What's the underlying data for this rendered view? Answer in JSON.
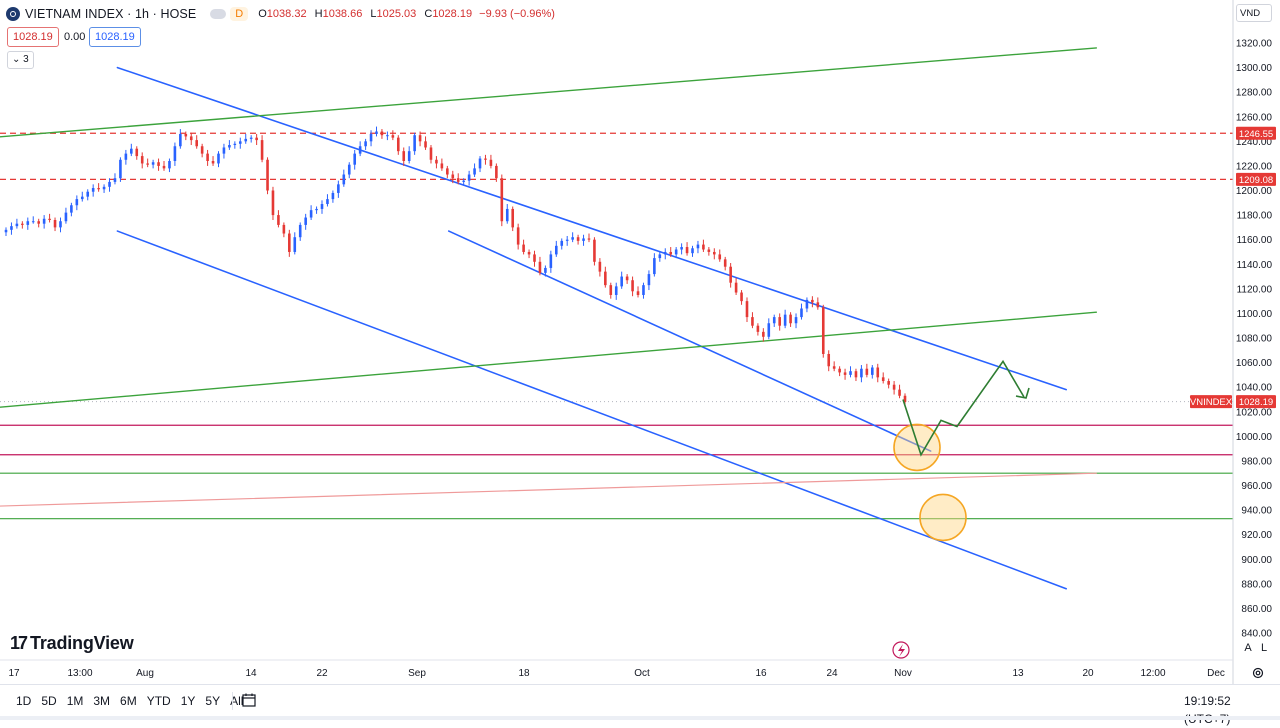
{
  "header": {
    "symbol_title": "VIETNAM INDEX · 1h · HOSE",
    "interval_badge": "D",
    "open_label": "O",
    "open": "1038.32",
    "high_label": "H",
    "high": "1038.66",
    "low_label": "L",
    "low": "1025.03",
    "close_label": "C",
    "close": "1028.19",
    "change": "−9.93 (−0.96%)",
    "bid": "1028.19",
    "spread": "0.00",
    "ask": "1028.19",
    "indicators_toggle": "⌄ 3"
  },
  "currency_select": "VND",
  "colors": {
    "up": "#26a69a",
    "down": "#ef5350",
    "candle_up": "#2962ff",
    "candle_down": "#e53935",
    "blue_line": "#2962ff",
    "green_line": "#3ca33c",
    "red_dash": "#e53935",
    "red_solid": "#c2185b",
    "orange_circle": "#f5a623"
  },
  "chart_data": {
    "type": "candlestick",
    "title": "VIETNAM INDEX · 1h · HOSE",
    "symbol_tag": "VNINDEX",
    "last_price": 1028.19,
    "last_price_label": "1028.19",
    "ylim": [
      830,
      1330
    ],
    "y_ticks": [
      "1320.00",
      "1300.00",
      "1280.00",
      "1260.00",
      "1240.00",
      "1220.00",
      "1200.00",
      "1180.00",
      "1160.00",
      "1140.00",
      "1120.00",
      "1100.00",
      "1080.00",
      "1060.00",
      "1040.00",
      "1020.00",
      "1000.00",
      "980.00",
      "960.00",
      "940.00",
      "920.00",
      "900.00",
      "880.00",
      "860.00",
      "840.00"
    ],
    "x_ticks": [
      "17",
      "13:00",
      "Aug",
      "14",
      "22",
      "Sep",
      "18",
      "Oct",
      "16",
      "24",
      "Nov",
      "13",
      "20",
      "12:00",
      "Dec"
    ],
    "price_markers": [
      {
        "value": 1246.55,
        "label": "1246.55"
      },
      {
        "value": 1209.08,
        "label": "1209.08"
      }
    ],
    "close_path": [
      1168,
      1171,
      1173,
      1172,
      1175,
      1175,
      1173,
      1177,
      1176,
      1170,
      1175,
      1182,
      1188,
      1193,
      1195,
      1199,
      1202,
      1201,
      1203,
      1207,
      1210,
      1225,
      1230,
      1234,
      1228,
      1222,
      1221,
      1223,
      1220,
      1218,
      1224,
      1236,
      1246,
      1244,
      1241,
      1236,
      1230,
      1224,
      1222,
      1230,
      1235,
      1237,
      1238,
      1240,
      1242,
      1243,
      1241,
      1225,
      1200,
      1180,
      1172,
      1165,
      1150,
      1162,
      1172,
      1178,
      1184,
      1185,
      1189,
      1193,
      1198,
      1205,
      1213,
      1221,
      1230,
      1236,
      1240,
      1246,
      1248,
      1245,
      1245,
      1243,
      1232,
      1224,
      1232,
      1245,
      1240,
      1235,
      1225,
      1222,
      1218,
      1213,
      1210,
      1207,
      1208,
      1213,
      1218,
      1226,
      1225,
      1220,
      1210,
      1175,
      1185,
      1170,
      1156,
      1150,
      1148,
      1142,
      1133,
      1137,
      1148,
      1155,
      1159,
      1160,
      1162,
      1159,
      1161,
      1160,
      1142,
      1134,
      1123,
      1115,
      1122,
      1130,
      1127,
      1118,
      1115,
      1123,
      1132,
      1145,
      1148,
      1150,
      1148,
      1152,
      1154,
      1149,
      1153,
      1156,
      1152,
      1150,
      1148,
      1144,
      1138,
      1125,
      1117,
      1110,
      1097,
      1090,
      1085,
      1081,
      1092,
      1097,
      1090,
      1099,
      1092,
      1097,
      1104,
      1111,
      1109,
      1105,
      1067,
      1057,
      1055,
      1052,
      1050,
      1053,
      1048,
      1055,
      1050,
      1056,
      1048,
      1045,
      1042,
      1038,
      1033,
      1028
    ],
    "series": [
      {
        "name": "Upper channel",
        "kind": "trendline",
        "points": [
          [
            "2023-07-31",
            1300.0
          ],
          [
            "2023-12-04",
            1038.0
          ]
        ]
      },
      {
        "name": "Mid channel",
        "kind": "trendline",
        "points": [
          [
            "2023-09-13",
            1167.0
          ],
          [
            "2023-11-16",
            988.0
          ]
        ]
      },
      {
        "name": "Lower channel",
        "kind": "trendline",
        "points": [
          [
            "2023-07-31",
            1167.0
          ],
          [
            "2023-12-04",
            876.0
          ]
        ]
      },
      {
        "name": "Top green",
        "kind": "trendline",
        "points": [
          [
            "2023-07-14",
            1243.0
          ],
          [
            "2023-12-08",
            1316.0
          ]
        ]
      },
      {
        "name": "Mid green",
        "kind": "trendline",
        "points": [
          [
            "2023-07-14",
            1023.0
          ],
          [
            "2023-12-08",
            1101.0
          ]
        ]
      },
      {
        "name": "Pink",
        "kind": "trendline",
        "points": [
          [
            "2023-07-14",
            943.0
          ],
          [
            "2023-12-08",
            970.0
          ]
        ]
      },
      {
        "name": "Resistance 1246.55",
        "kind": "hline-dashed",
        "value": 1246.55
      },
      {
        "name": "Resistance 1209.08",
        "kind": "hline-dashed",
        "value": 1209.08
      },
      {
        "name": "Support 1009",
        "kind": "hline",
        "value": 1009
      },
      {
        "name": "Support 985",
        "kind": "hline",
        "value": 985
      },
      {
        "name": "Support 970",
        "kind": "hline",
        "value": 970
      },
      {
        "name": "Support 933",
        "kind": "hline",
        "value": 933
      },
      {
        "name": "Scenario",
        "kind": "projection",
        "points": [
          [
            1030,
            1030
          ],
          [
            985,
            985
          ],
          [
            1013,
            1013
          ],
          [
            1008,
            1008
          ],
          [
            1061,
            1061
          ],
          [
            1032,
            1032
          ]
        ]
      }
    ],
    "highlight_zones": [
      {
        "center": 991,
        "label": "zone-1"
      },
      {
        "center": 934,
        "label": "zone-2"
      }
    ],
    "grid": false
  },
  "watermark": "TradingView",
  "axis_controls": {
    "auto": "A",
    "log": "L"
  },
  "bottom": {
    "ranges": [
      "1D",
      "5D",
      "1M",
      "3M",
      "6M",
      "YTD",
      "1Y",
      "5Y",
      "All"
    ],
    "clock": "19:19:52 (UTC+7)"
  }
}
